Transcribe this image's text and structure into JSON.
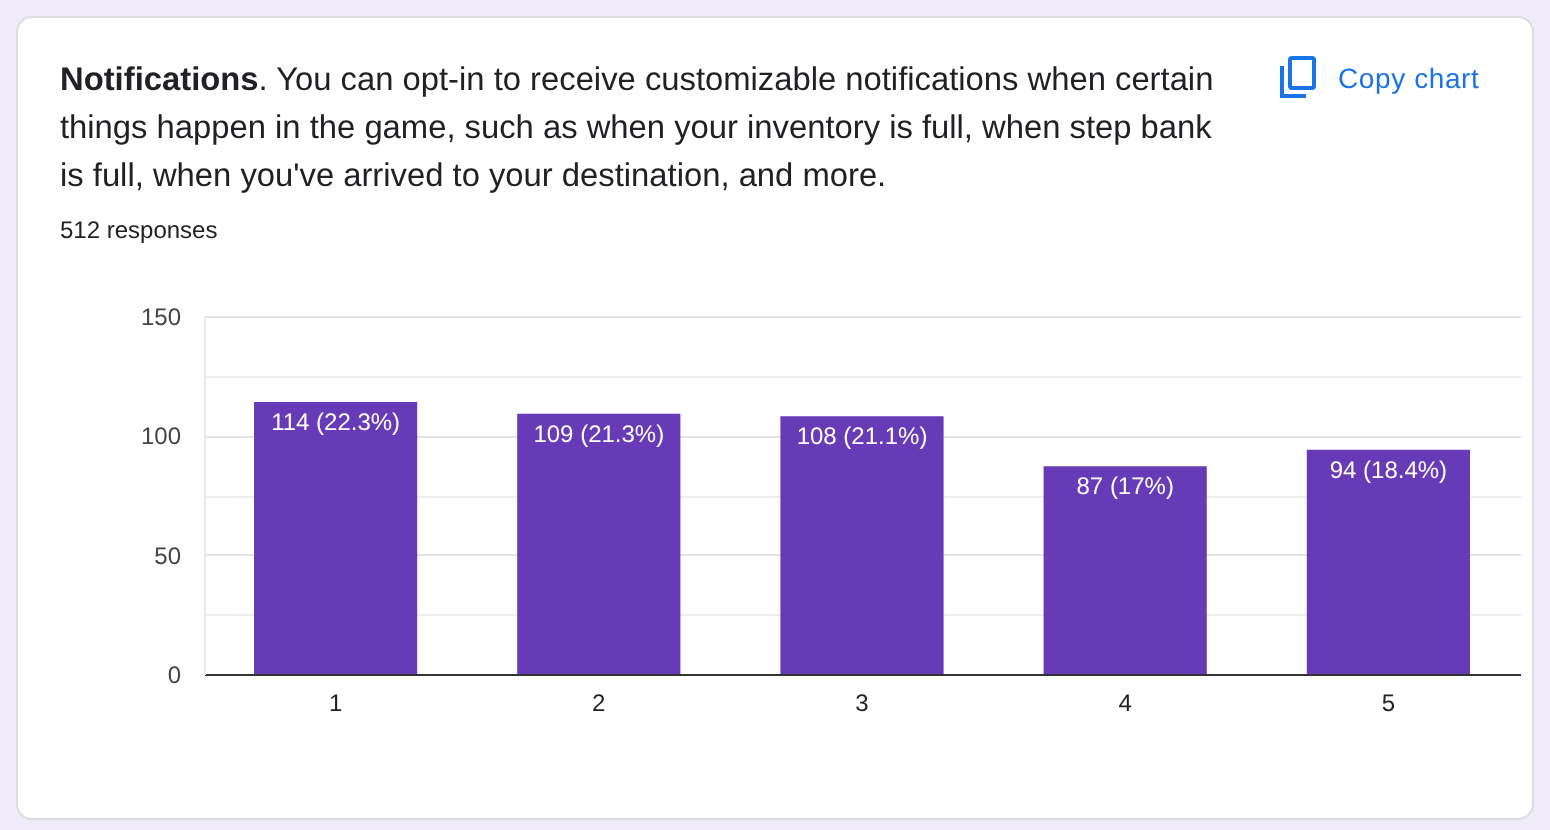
{
  "chart_data": {
    "type": "bar",
    "title": "Notifications. You can opt-in to receive customizable notifications when certain things happen in the game, such as when your inventory is full, when step bank is full, when you've arrived to your destination, and more.",
    "subtitle": "512 responses",
    "annotations": [
      "Copy chart"
    ],
    "categories": [
      "1",
      "2",
      "3",
      "4",
      "5"
    ],
    "values": [
      114,
      109,
      108,
      87,
      94
    ],
    "value_labels": [
      "114 (22.3%)",
      "109 (21.3%)",
      "108 (21.1%)",
      "87 (17%)",
      "94 (18.4%)"
    ],
    "color": "#673ab7",
    "ylim": [
      0,
      150
    ],
    "yticks": [
      0,
      {
        "value": 25,
        "label": null
      },
      50,
      {
        "value": 75,
        "label": null
      },
      100,
      {
        "value": 125,
        "label": null
      },
      150
    ],
    "grid": "y"
  }
}
